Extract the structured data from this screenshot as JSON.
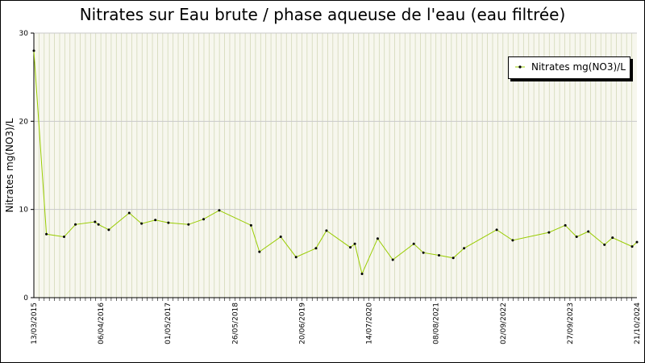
{
  "chart_data": {
    "type": "line",
    "title": "Nitrates sur Eau brute / phase aqueuse de l'eau (eau filtrée)",
    "ylabel": "Nitrates mg(NO3)/L",
    "xlabel": "",
    "ylim": [
      0,
      30
    ],
    "yticks": [
      "0",
      "10",
      "20",
      "30"
    ],
    "xlim": [
      "2015-03-13",
      "2024-10-21"
    ],
    "xtick_labels": [
      "13/03/2015",
      "06/04/2016",
      "01/05/2017",
      "26/05/2018",
      "20/06/2019",
      "14/07/2020",
      "08/08/2021",
      "02/09/2022",
      "27/09/2023",
      "21/10/2024"
    ],
    "grid": true,
    "legend_position": "top-right",
    "series": [
      {
        "name": "Nitrates mg(NO3)/L",
        "color": "#99cc00",
        "marker_color": "#000000",
        "points": [
          [
            "2015-03-13",
            28.0
          ],
          [
            "2015-05-25",
            7.2
          ],
          [
            "2015-09-05",
            6.9
          ],
          [
            "2015-11-10",
            8.3
          ],
          [
            "2016-03-03",
            8.6
          ],
          [
            "2016-03-23",
            8.3
          ],
          [
            "2016-05-22",
            7.7
          ],
          [
            "2016-09-18",
            9.6
          ],
          [
            "2016-11-29",
            8.4
          ],
          [
            "2017-02-17",
            8.8
          ],
          [
            "2017-05-04",
            8.5
          ],
          [
            "2017-08-29",
            8.3
          ],
          [
            "2017-11-25",
            8.9
          ],
          [
            "2018-02-24",
            9.9
          ],
          [
            "2018-08-28",
            8.2
          ],
          [
            "2018-10-16",
            5.2
          ],
          [
            "2019-02-17",
            6.9
          ],
          [
            "2019-05-17",
            4.6
          ],
          [
            "2019-09-10",
            5.6
          ],
          [
            "2019-11-10",
            7.6
          ],
          [
            "2020-03-28",
            5.7
          ],
          [
            "2020-04-23",
            6.1
          ],
          [
            "2020-06-04",
            2.7
          ],
          [
            "2020-09-03",
            6.7
          ],
          [
            "2020-11-30",
            4.3
          ],
          [
            "2021-04-01",
            6.1
          ],
          [
            "2021-05-27",
            5.1
          ],
          [
            "2021-08-26",
            4.8
          ],
          [
            "2021-11-17",
            4.5
          ],
          [
            "2022-01-19",
            5.6
          ],
          [
            "2022-07-28",
            7.7
          ],
          [
            "2022-10-29",
            6.5
          ],
          [
            "2023-05-28",
            7.4
          ],
          [
            "2023-08-31",
            8.2
          ],
          [
            "2023-11-05",
            6.9
          ],
          [
            "2024-01-12",
            7.5
          ],
          [
            "2024-04-15",
            6.0
          ],
          [
            "2024-06-01",
            6.8
          ],
          [
            "2024-09-23",
            5.8
          ],
          [
            "2024-10-21",
            6.3
          ]
        ]
      }
    ]
  }
}
